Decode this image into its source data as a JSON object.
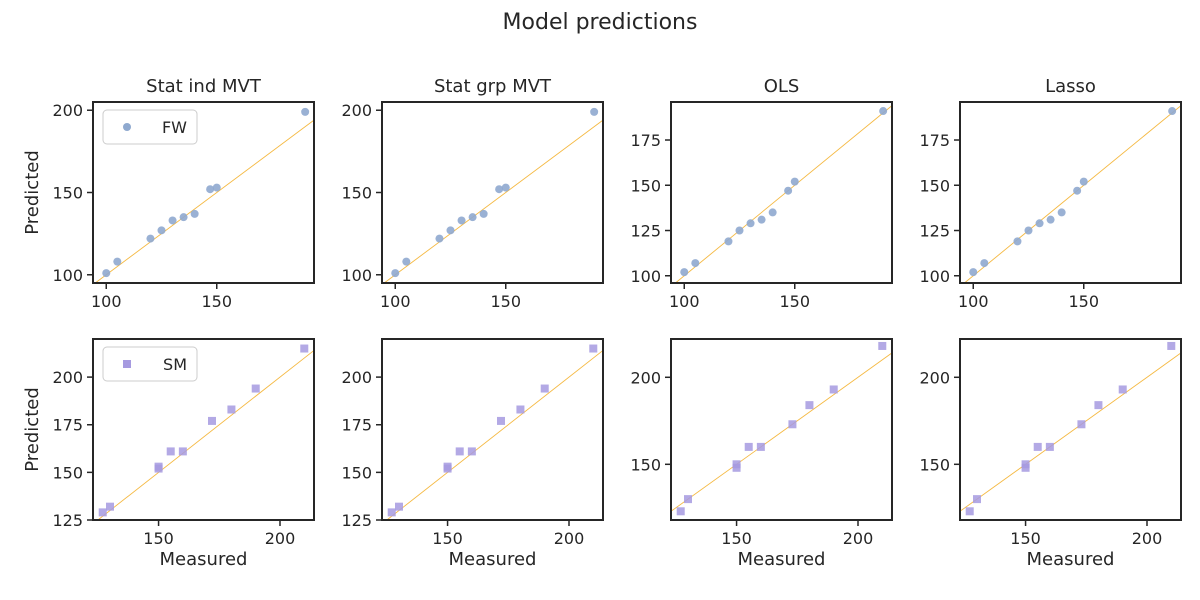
{
  "figure": {
    "title": "Model predictions"
  },
  "chart_data": [
    {
      "type": "scatter",
      "title": "Stat ind MVT",
      "row": 0,
      "col": 0,
      "series": [
        {
          "name": "FW",
          "marker": "circle",
          "color": "#8fa9cf",
          "x": [
            100,
            105,
            120,
            125,
            130,
            135,
            140,
            147,
            150,
            190
          ],
          "y": [
            101,
            108,
            122,
            127,
            133,
            135,
            137,
            152,
            153,
            199
          ]
        }
      ],
      "xlim": [
        94,
        194
      ],
      "ylim": [
        95,
        205
      ],
      "xticks": [
        100,
        150
      ],
      "yticks": [
        100,
        150,
        200
      ],
      "xlabel": "",
      "ylabel": "Predicted",
      "legend": "top-left"
    },
    {
      "type": "scatter",
      "title": "Stat grp MVT",
      "row": 0,
      "col": 1,
      "series": [
        {
          "name": "",
          "marker": "circle",
          "color": "#8fa9cf",
          "x": [
            100,
            105,
            120,
            125,
            130,
            135,
            140,
            147,
            150,
            190
          ],
          "y": [
            101,
            108,
            122,
            127,
            133,
            135,
            137,
            152,
            153,
            199
          ]
        }
      ],
      "xlim": [
        94,
        194
      ],
      "ylim": [
        95,
        205
      ],
      "xticks": [
        100,
        150
      ],
      "yticks": [
        100,
        150,
        200
      ],
      "xlabel": "",
      "ylabel": ""
    },
    {
      "type": "scatter",
      "title": "OLS",
      "row": 0,
      "col": 2,
      "series": [
        {
          "name": "",
          "marker": "circle",
          "color": "#8fa9cf",
          "x": [
            100,
            105,
            120,
            125,
            130,
            135,
            140,
            147,
            150,
            190
          ],
          "y": [
            102,
            107,
            119,
            125,
            129,
            131,
            135,
            147,
            152,
            191
          ]
        }
      ],
      "xlim": [
        94,
        194
      ],
      "ylim": [
        96,
        196
      ],
      "xticks": [
        100,
        150
      ],
      "yticks": [
        100,
        125,
        150,
        175
      ],
      "xlabel": "",
      "ylabel": ""
    },
    {
      "type": "scatter",
      "title": "Lasso",
      "row": 0,
      "col": 3,
      "series": [
        {
          "name": "",
          "marker": "circle",
          "color": "#8fa9cf",
          "x": [
            100,
            105,
            120,
            125,
            130,
            135,
            140,
            147,
            150,
            190
          ],
          "y": [
            102,
            107,
            119,
            125,
            129,
            131,
            135,
            147,
            152,
            191
          ]
        }
      ],
      "xlim": [
        94,
        194
      ],
      "ylim": [
        96,
        196
      ],
      "xticks": [
        100,
        150
      ],
      "yticks": [
        100,
        125,
        150,
        175
      ],
      "xlabel": "",
      "ylabel": ""
    },
    {
      "type": "scatter",
      "title": "",
      "row": 1,
      "col": 0,
      "series": [
        {
          "name": "SM",
          "marker": "square",
          "color": "#a69ae0",
          "x": [
            127,
            130,
            150,
            150,
            155,
            160,
            172,
            180,
            190,
            210
          ],
          "y": [
            129,
            132,
            152,
            153,
            161,
            161,
            177,
            183,
            194,
            215
          ]
        }
      ],
      "xlim": [
        123,
        214
      ],
      "ylim": [
        125,
        220
      ],
      "xticks": [
        150,
        200
      ],
      "yticks": [
        125,
        150,
        175,
        200
      ],
      "xlabel": "Measured",
      "ylabel": "Predicted",
      "legend": "top-left"
    },
    {
      "type": "scatter",
      "title": "",
      "row": 1,
      "col": 1,
      "series": [
        {
          "name": "",
          "marker": "square",
          "color": "#a69ae0",
          "x": [
            127,
            130,
            150,
            150,
            155,
            160,
            172,
            180,
            190,
            210
          ],
          "y": [
            129,
            132,
            152,
            153,
            161,
            161,
            177,
            183,
            194,
            215
          ]
        }
      ],
      "xlim": [
        123,
        214
      ],
      "ylim": [
        125,
        220
      ],
      "xticks": [
        150,
        200
      ],
      "yticks": [
        125,
        150,
        175,
        200
      ],
      "xlabel": "Measured",
      "ylabel": ""
    },
    {
      "type": "scatter",
      "title": "",
      "row": 1,
      "col": 2,
      "series": [
        {
          "name": "",
          "marker": "square",
          "color": "#a69ae0",
          "x": [
            127,
            130,
            150,
            150,
            155,
            160,
            173,
            180,
            190,
            210
          ],
          "y": [
            123,
            130,
            148,
            150,
            160,
            160,
            173,
            184,
            193,
            218
          ]
        }
      ],
      "xlim": [
        123,
        214
      ],
      "ylim": [
        118,
        222
      ],
      "xticks": [
        150,
        200
      ],
      "yticks": [
        150,
        200
      ],
      "xlabel": "Measured",
      "ylabel": ""
    },
    {
      "type": "scatter",
      "title": "",
      "row": 1,
      "col": 3,
      "series": [
        {
          "name": "",
          "marker": "square",
          "color": "#a69ae0",
          "x": [
            127,
            130,
            150,
            150,
            155,
            160,
            173,
            180,
            190,
            210
          ],
          "y": [
            123,
            130,
            148,
            150,
            160,
            160,
            173,
            184,
            193,
            218
          ]
        }
      ],
      "xlim": [
        123,
        214
      ],
      "ylim": [
        118,
        222
      ],
      "xticks": [
        150,
        200
      ],
      "yticks": [
        150,
        200
      ],
      "xlabel": "Measured",
      "ylabel": ""
    }
  ]
}
